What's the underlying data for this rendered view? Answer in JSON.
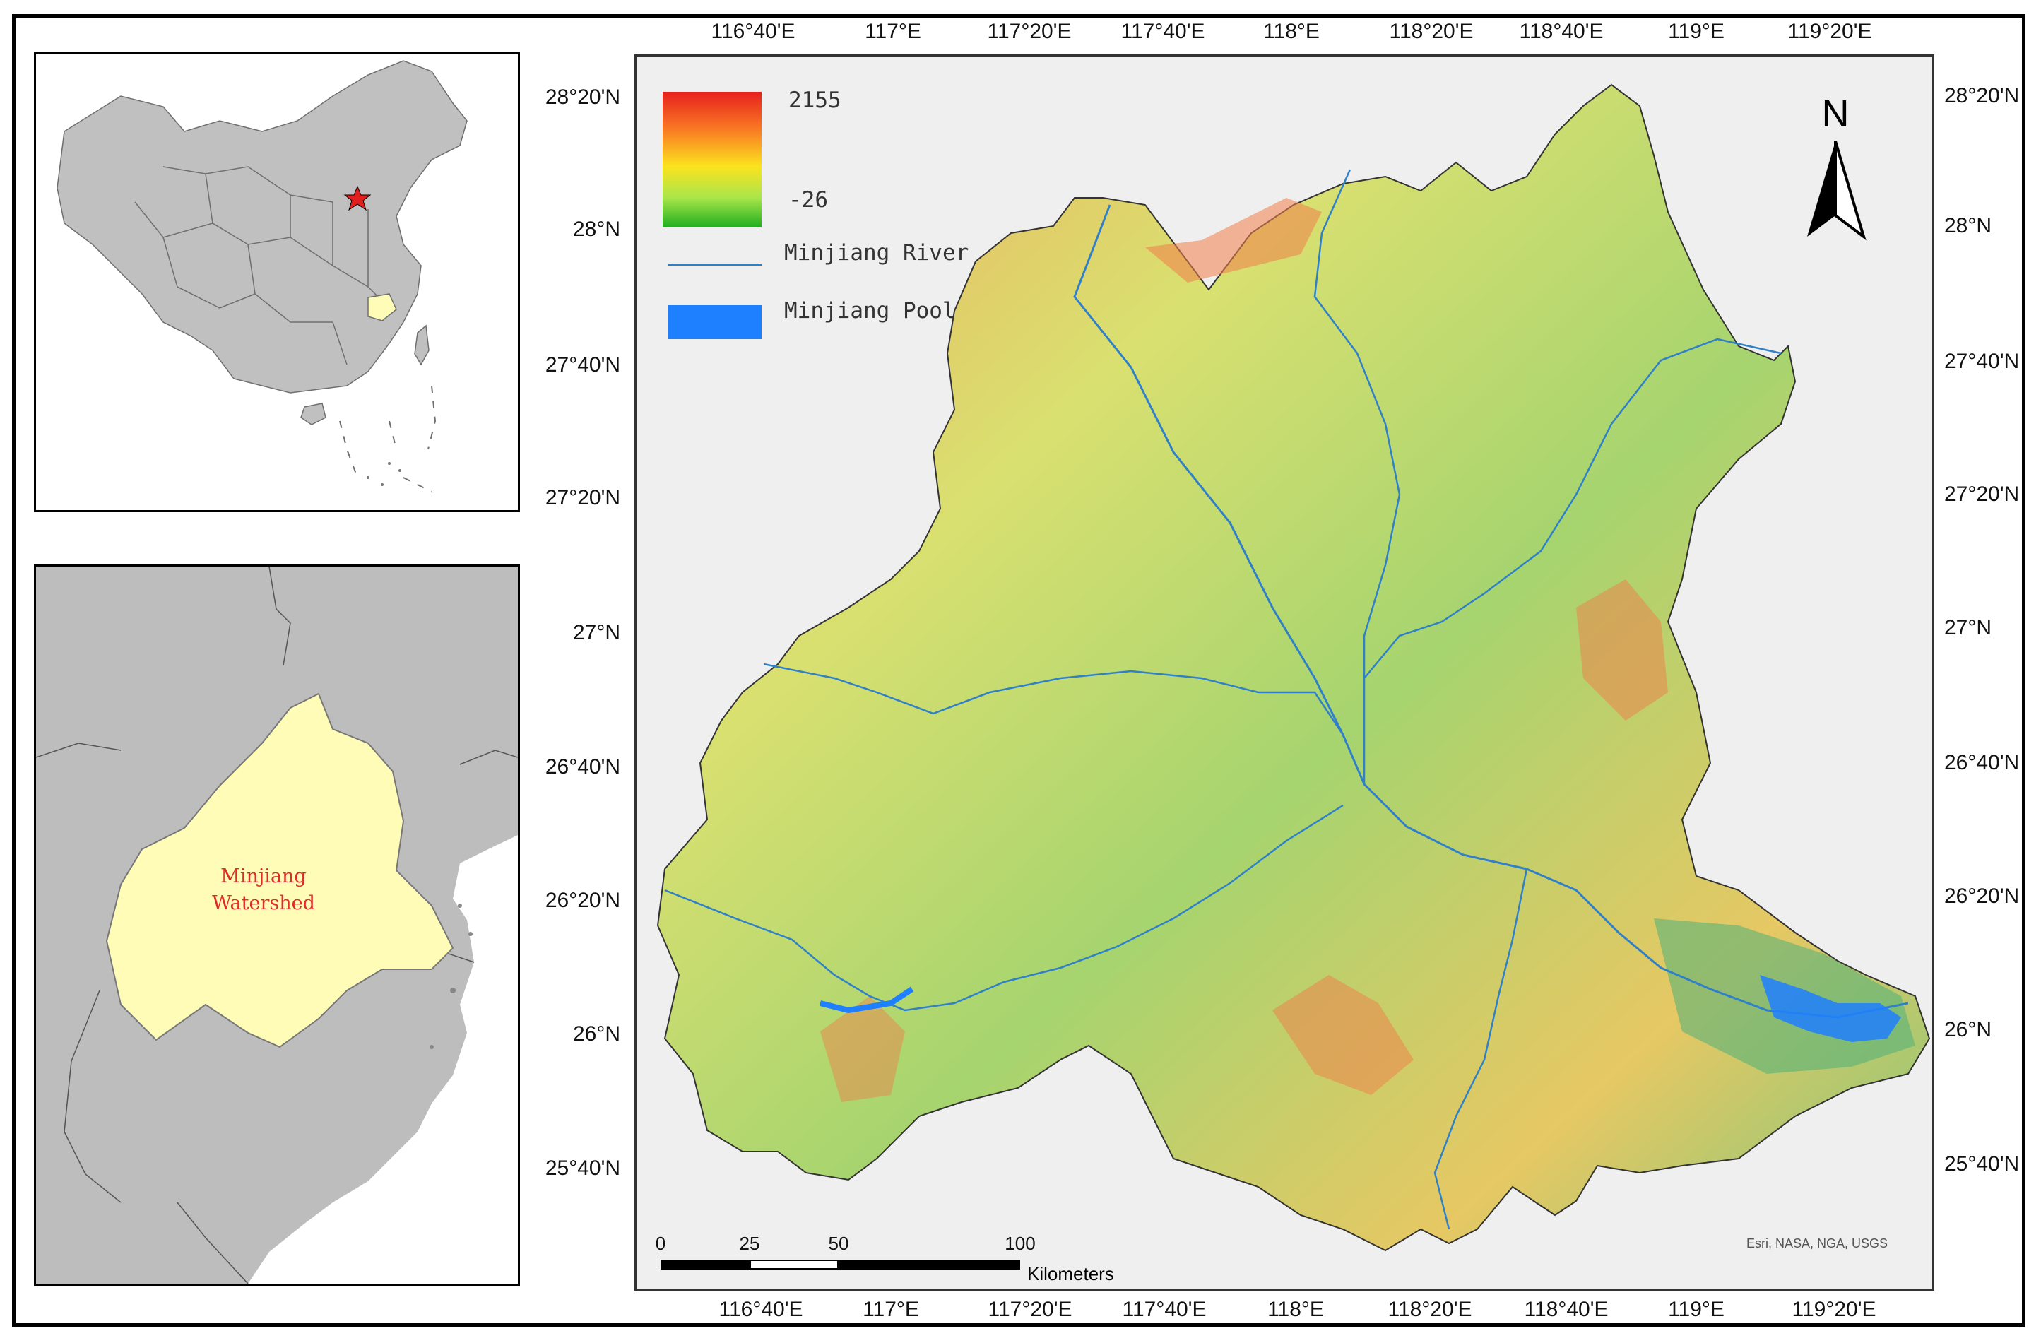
{
  "map": {
    "top_ticks": [
      "116°40'E",
      "117°E",
      "117°20'E",
      "117°40'E",
      "118°E",
      "118°20'E",
      "118°40'E",
      "119°E",
      "119°20'E"
    ],
    "bottom_ticks": [
      "116°40'E",
      "117°E",
      "117°20'E",
      "117°40'E",
      "118°E",
      "118°20'E",
      "118°40'E",
      "119°E",
      "119°20'E"
    ],
    "left_ticks": [
      "28°20'N",
      "28°N",
      "27°40'N",
      "27°20'N",
      "27°N",
      "26°40'N",
      "26°20'N",
      "26°N",
      "25°40'N"
    ],
    "right_ticks": [
      "28°20'N",
      "28°N",
      "27°40'N",
      "27°20'N",
      "27°N",
      "26°40'N",
      "26°20'N",
      "26°N",
      "25°40'N"
    ],
    "attribution": "Esri, NASA, NGA, USGS"
  },
  "legend": {
    "elevation_max": "2155",
    "elevation_min": "-26",
    "river_label": "Minjiang River",
    "pool_label": "Minjiang Pool",
    "ramp_colors": [
      "#e8201e",
      "#f97b23",
      "#fbe31e",
      "#a9e64a",
      "#1fae20"
    ],
    "river_color": "#2f80c8",
    "pool_color": "#1e7fff"
  },
  "north_arrow": {
    "label": "N"
  },
  "scale_bar": {
    "ticks": [
      "0",
      "25",
      "50",
      "100"
    ],
    "units": "Kilometers"
  },
  "inset_fujian": {
    "label_line1": "Minjiang",
    "label_line2": "Watershed",
    "watershed_fill": "#fffcb8",
    "label_color": "#e02b2b"
  },
  "inset_china": {
    "land_fill": "#c0c0c0",
    "capital_marker": "red-star",
    "highlight_fill": "#fffcb8"
  }
}
